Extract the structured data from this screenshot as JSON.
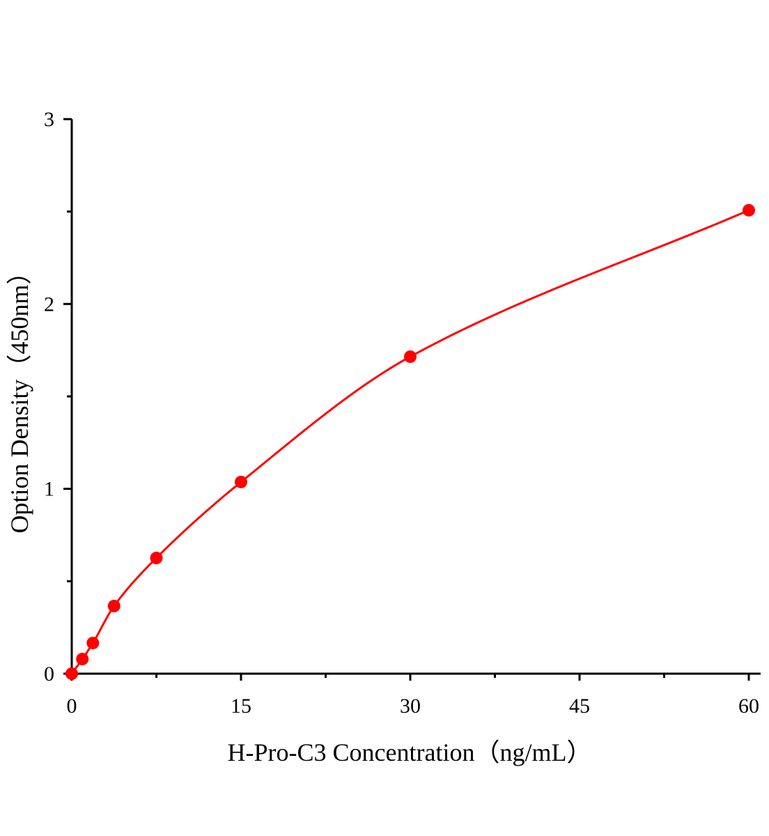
{
  "chart_data": {
    "type": "scatter",
    "title": "",
    "xlabel": "H-Pro-C3 Concentration（ng/mL）",
    "ylabel": "Option Density（450nm）",
    "xlim": [
      0,
      61
    ],
    "ylim": [
      0,
      3
    ],
    "xticks": [
      0,
      15,
      30,
      45,
      60
    ],
    "yticks": [
      0,
      1,
      2,
      3
    ],
    "xtick_labels": [
      "0",
      "15",
      "30",
      "45",
      "60"
    ],
    "ytick_labels": [
      "0",
      "1",
      "2",
      "3"
    ],
    "grid": false,
    "legend": "none",
    "color": "#ff0000",
    "fit_curve": true,
    "series": [
      {
        "x": [
          0,
          0.94,
          1.875,
          3.75,
          7.5,
          15,
          30,
          60
        ],
        "y": [
          0.0,
          0.079,
          0.166,
          0.366,
          0.626,
          1.037,
          1.715,
          2.507
        ]
      }
    ]
  }
}
